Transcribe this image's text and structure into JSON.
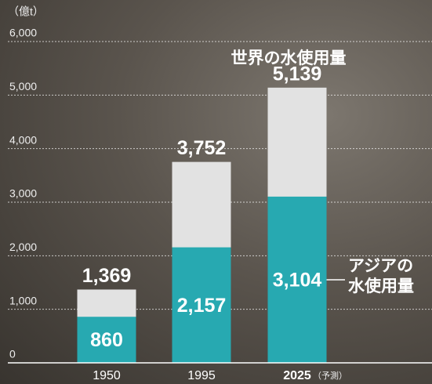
{
  "chart_data": {
    "type": "bar",
    "y_axis_label": "（億t）",
    "categories": [
      "1950",
      "1995",
      "2025"
    ],
    "category_annotation": "（予測）",
    "series": [
      {
        "name": "世界の水使用量",
        "color": "#e2e2e2",
        "values": [
          1369,
          3752,
          5139
        ],
        "value_labels": [
          "1,369",
          "3,752",
          "5,139"
        ]
      },
      {
        "name": "アジアの水使用量",
        "color": "#27a9b1",
        "values": [
          860,
          2157,
          3104
        ],
        "value_labels": [
          "860",
          "2,157",
          "3,104"
        ]
      }
    ],
    "ylim": [
      0,
      6000
    ],
    "yticks": [
      0,
      {
        "value": 1000,
        "label": "1,000"
      },
      {
        "value": 2000,
        "label": "2,000"
      },
      {
        "value": 3000,
        "label": "3,000"
      },
      {
        "value": 4000,
        "label": "4,000"
      },
      {
        "value": 5000,
        "label": "5,000"
      },
      {
        "value": 6000,
        "label": "6,000"
      }
    ],
    "grid": true
  }
}
